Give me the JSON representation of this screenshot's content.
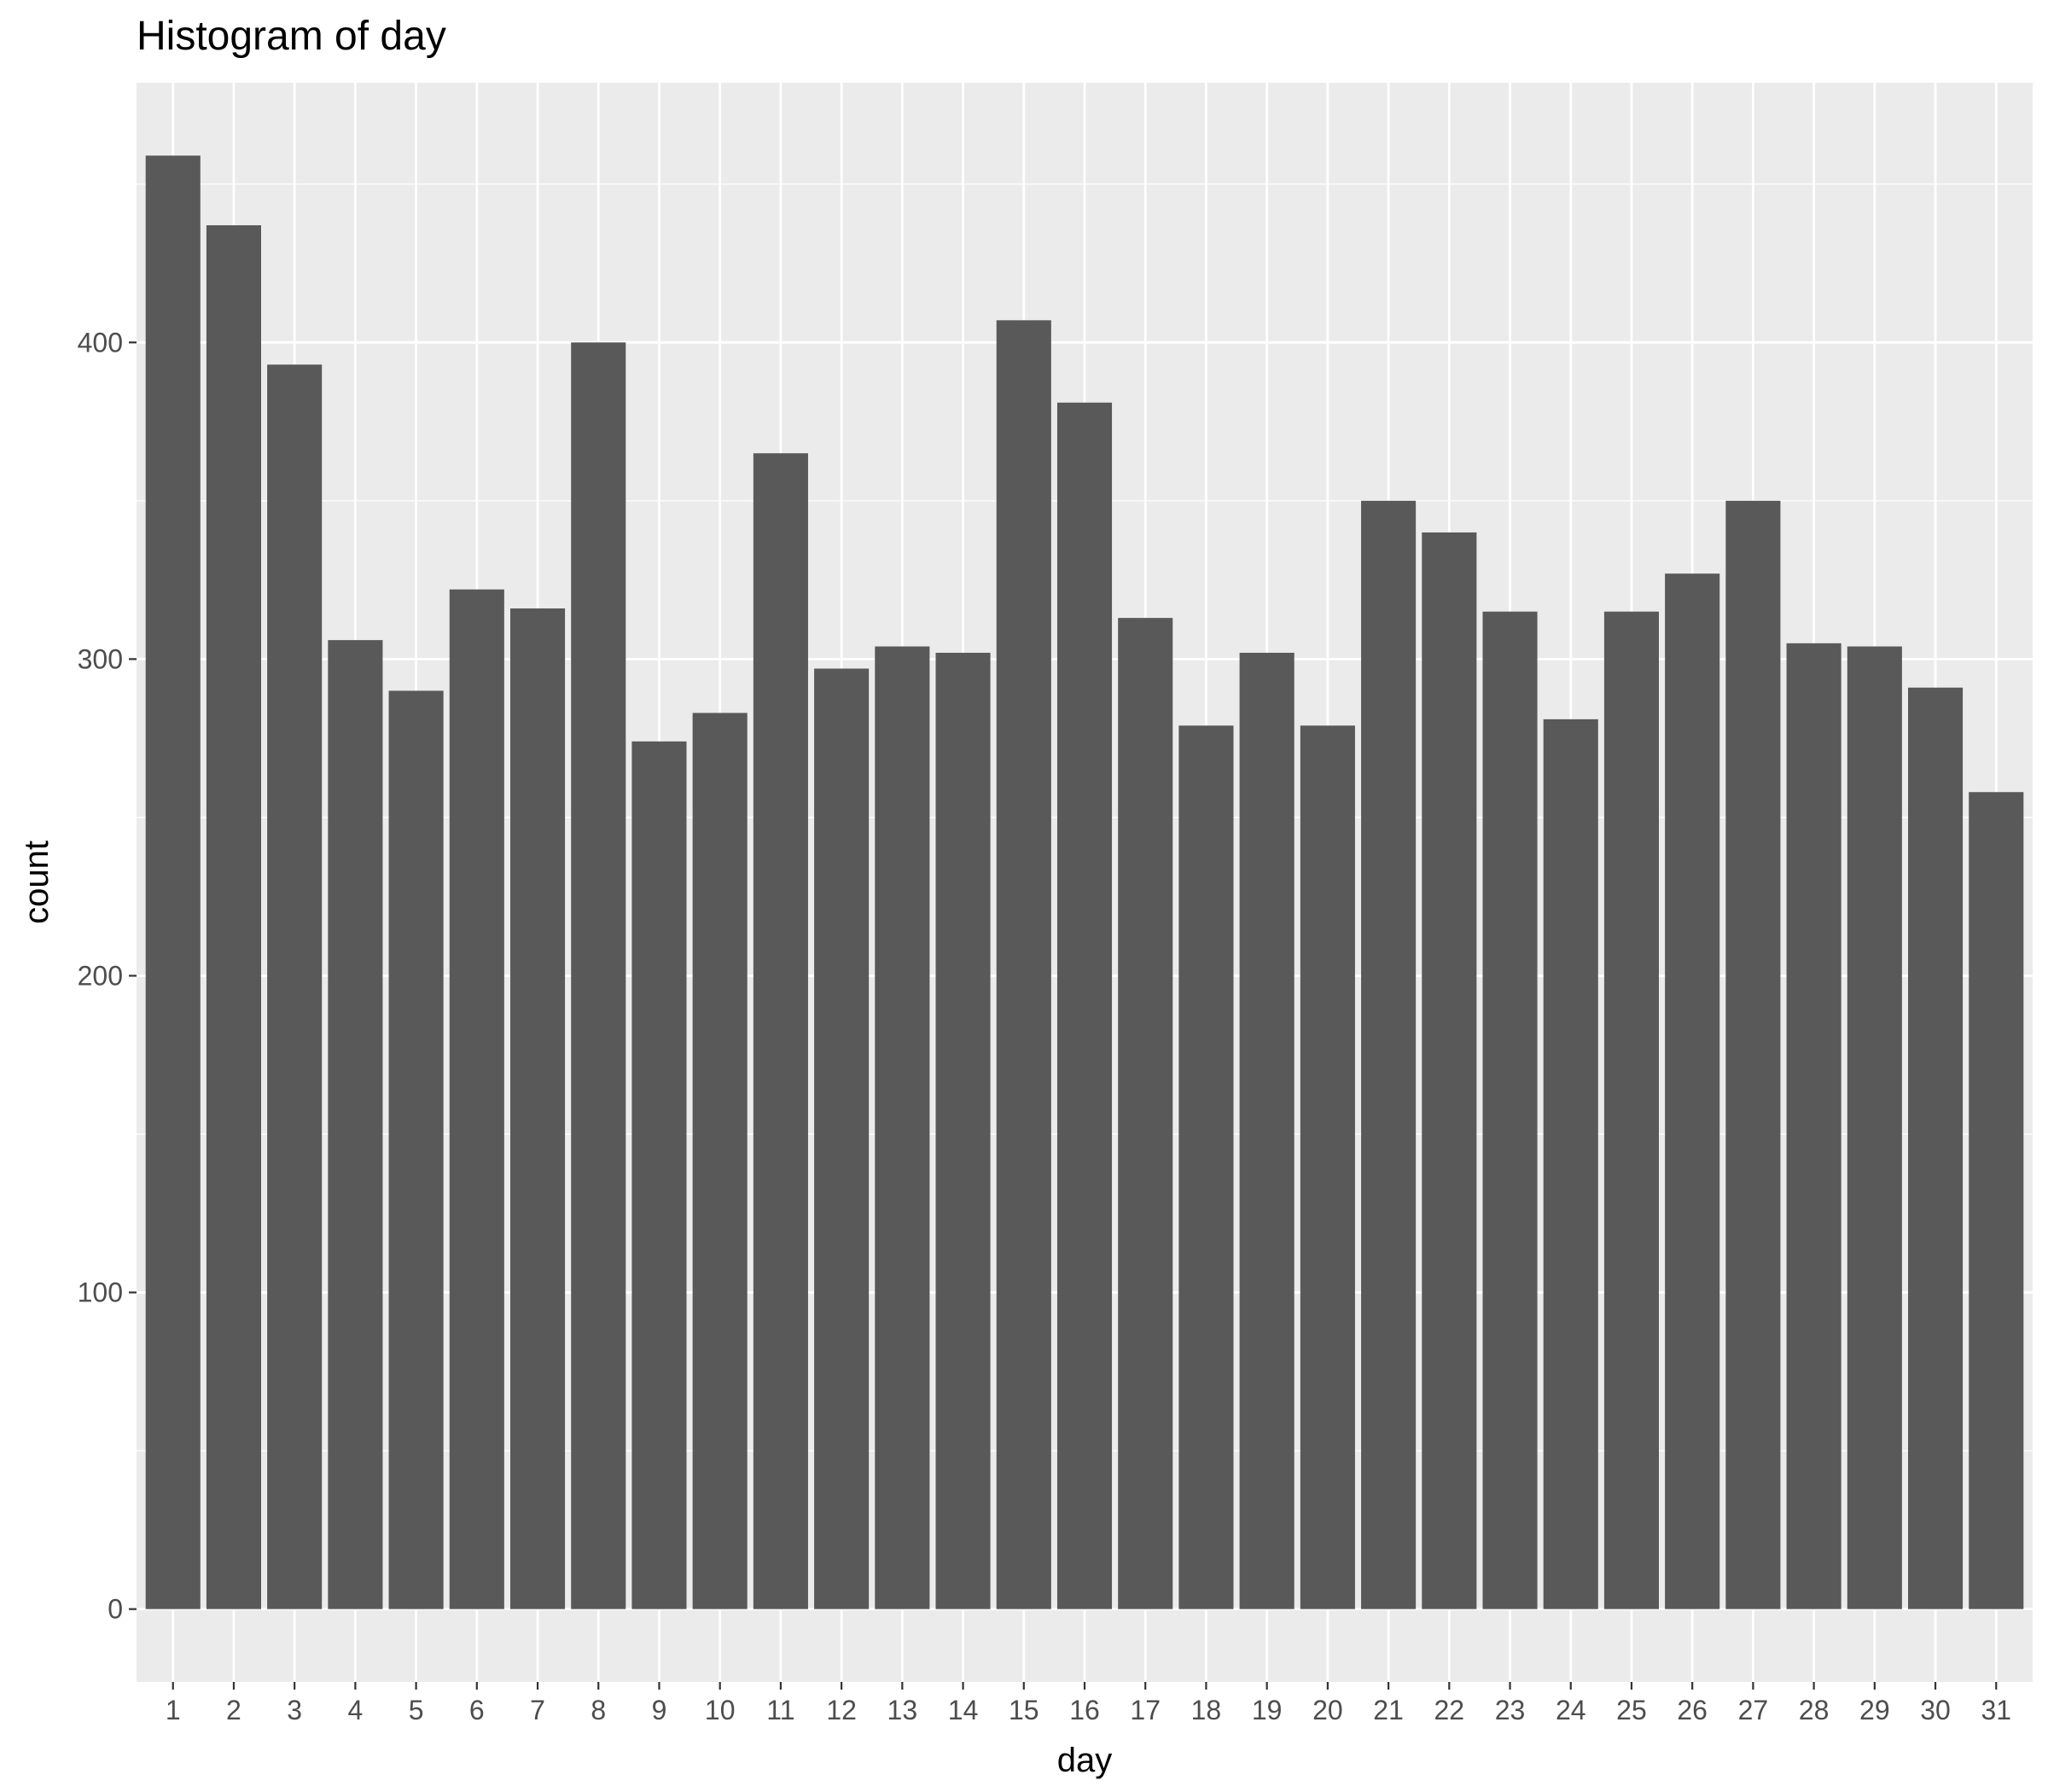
{
  "chart_data": {
    "type": "bar",
    "title": "Histogram of day",
    "xlabel": "day",
    "ylabel": "count",
    "categories": [
      "1",
      "2",
      "3",
      "4",
      "5",
      "6",
      "7",
      "8",
      "9",
      "10",
      "11",
      "12",
      "13",
      "14",
      "15",
      "16",
      "17",
      "18",
      "19",
      "20",
      "21",
      "22",
      "23",
      "24",
      "25",
      "26",
      "27",
      "28",
      "29",
      "30",
      "31"
    ],
    "values": [
      459,
      437,
      393,
      306,
      290,
      322,
      316,
      400,
      274,
      283,
      365,
      297,
      304,
      302,
      407,
      381,
      313,
      279,
      302,
      279,
      350,
      340,
      315,
      281,
      315,
      327,
      350,
      305,
      304,
      291,
      258
    ],
    "yticks": [
      0,
      100,
      200,
      300,
      400
    ],
    "ylim": [
      -23,
      482
    ],
    "grid": true,
    "colors": {
      "panel_background": "#ebebeb",
      "grid": "#ffffff",
      "bar_fill": "#595959",
      "tick_text": "#4d4d4d",
      "tick_mark": "#333333"
    }
  }
}
